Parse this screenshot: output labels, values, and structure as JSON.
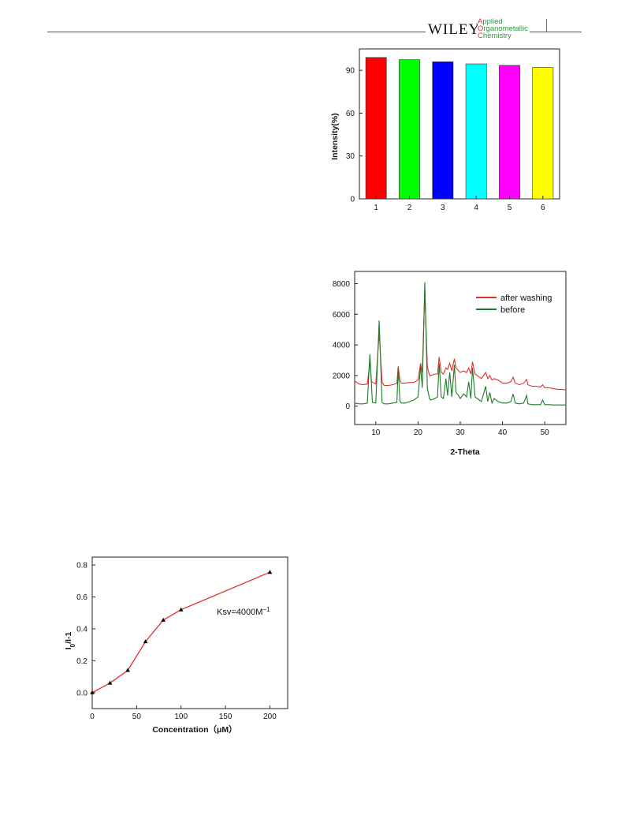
{
  "header": {
    "publisher": "WILEY",
    "journal": [
      {
        "cap": "A",
        "rest": "pplied"
      },
      {
        "cap": "O",
        "rest": "rganometallic"
      },
      {
        "cap": "C",
        "rest": "hemistry"
      }
    ]
  },
  "chart_data": [
    {
      "type": "bar",
      "categories": [
        "1",
        "2",
        "3",
        "4",
        "5",
        "6"
      ],
      "values": [
        99,
        97.5,
        96,
        94.5,
        93.5,
        92
      ],
      "colors": [
        "#ff0000",
        "#00ff00",
        "#0000ff",
        "#00ffff",
        "#ff00ff",
        "#ffff00"
      ],
      "xlabel": "",
      "ylabel": "Intensity(%)",
      "ylim": [
        0,
        105
      ],
      "yticks": [
        "0",
        "30",
        "60",
        "90"
      ],
      "grid": false
    },
    {
      "type": "line",
      "xlabel": "2-Theta",
      "ylabel": "",
      "xlim": [
        5,
        55
      ],
      "ylim": [
        -1200,
        8800
      ],
      "xticks": [
        "10",
        "20",
        "30",
        "40",
        "50"
      ],
      "yticks": [
        "0",
        "2000",
        "4000",
        "6000",
        "8000"
      ],
      "legend": "top-right",
      "series": [
        {
          "name": "after washing",
          "color": "#e03030",
          "x": [
            5,
            6,
            7,
            8,
            8.6,
            9,
            10,
            10.8,
            11.5,
            12,
            13,
            14,
            15,
            15.3,
            15.7,
            16,
            17,
            18,
            19,
            20,
            20.6,
            21,
            21.6,
            22.2,
            22.7,
            23,
            24,
            24.6,
            25,
            25.5,
            26,
            26.6,
            27,
            27.5,
            28,
            28.6,
            29,
            29.6,
            30,
            30.8,
            31.5,
            32,
            32.5,
            32.9,
            33.5,
            34,
            34.5,
            35,
            36,
            36.5,
            37,
            37.5,
            38,
            39,
            40,
            41,
            42,
            42.5,
            43,
            44,
            45,
            45.7,
            46,
            47,
            48,
            49,
            49.5,
            50,
            51,
            52,
            53,
            54,
            55
          ],
          "y": [
            1650,
            1450,
            1400,
            1450,
            2900,
            1600,
            1450,
            4800,
            1550,
            1350,
            1350,
            1400,
            1500,
            2600,
            1700,
            1500,
            1500,
            1550,
            1550,
            1700,
            2800,
            2200,
            7600,
            2600,
            2000,
            2000,
            2100,
            2100,
            3200,
            2200,
            2100,
            2500,
            2400,
            2800,
            2300,
            3100,
            2500,
            2300,
            2200,
            2300,
            2200,
            2500,
            2100,
            2900,
            2100,
            2000,
            1900,
            1800,
            2200,
            1800,
            2000,
            1700,
            1800,
            1700,
            1500,
            1500,
            1600,
            1900,
            1500,
            1400,
            1500,
            1750,
            1400,
            1300,
            1300,
            1250,
            1400,
            1200,
            1200,
            1150,
            1100,
            1100,
            1050
          ]
        },
        {
          "name": "before",
          "color": "#1e7a28",
          "x": [
            5,
            6,
            7,
            8,
            8.6,
            9.2,
            10,
            10.8,
            11.5,
            12,
            13,
            14,
            15,
            15.3,
            15.7,
            16,
            17,
            18,
            19,
            20,
            20.6,
            21,
            21.6,
            22.2,
            22.7,
            23,
            24,
            24.6,
            25,
            25.5,
            26,
            26.6,
            27,
            27.5,
            28,
            28.6,
            29,
            29.6,
            30,
            30.8,
            31.5,
            32,
            32.5,
            32.9,
            33.5,
            34,
            34.5,
            35,
            36,
            36.5,
            37,
            37.5,
            38,
            39,
            40,
            41,
            42,
            42.5,
            43,
            44,
            45,
            45.7,
            46,
            47,
            48,
            49,
            49.5,
            50,
            51,
            52,
            53,
            54,
            55
          ],
          "y": [
            200,
            150,
            150,
            200,
            3400,
            250,
            200,
            5600,
            250,
            150,
            150,
            200,
            250,
            2500,
            350,
            200,
            200,
            300,
            400,
            600,
            2600,
            1200,
            8100,
            1200,
            500,
            400,
            500,
            600,
            2800,
            600,
            500,
            1800,
            700,
            2200,
            600,
            2700,
            900,
            700,
            500,
            800,
            600,
            1600,
            500,
            2500,
            600,
            500,
            400,
            300,
            1300,
            300,
            900,
            200,
            500,
            300,
            200,
            200,
            300,
            800,
            200,
            150,
            200,
            700,
            150,
            100,
            100,
            100,
            400,
            100,
            100,
            80,
            80,
            80,
            80
          ]
        }
      ]
    },
    {
      "type": "line",
      "xlabel": "Concentration（μM）",
      "ylabel": "I0/I-1",
      "ylabel_main": "I",
      "ylabel_sub": "0",
      "ylabel_rest": "/I-1",
      "xlim": [
        0,
        220
      ],
      "ylim": [
        -0.1,
        0.85
      ],
      "xticks": [
        "0",
        "50",
        "100",
        "150",
        "200"
      ],
      "yticks": [
        "0.0",
        "0.2",
        "0.4",
        "0.6",
        "0.8"
      ],
      "annotation": {
        "text": "Ksv=4000M",
        "sup": "−1"
      },
      "series": [
        {
          "line_color": "#e03030",
          "marker_color": "#000000",
          "x": [
            0,
            20,
            40,
            60,
            80,
            100,
            200
          ],
          "y": [
            0.0,
            0.06,
            0.14,
            0.32,
            0.455,
            0.52,
            0.755
          ]
        }
      ]
    }
  ]
}
